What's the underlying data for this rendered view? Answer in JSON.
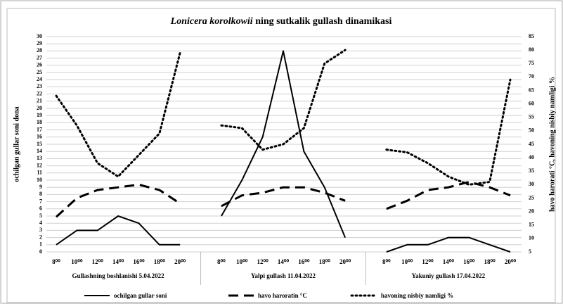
{
  "chart_data": {
    "type": "line",
    "title": [
      "Lonicera korolkowii",
      " ning sutkalik gullash dinamikasi"
    ],
    "ylabel": "ochilgan gullar soni dona",
    "y2label": "havo harorati °C, havoning nisbiy namligi %",
    "categories": [
      "8⁰⁰",
      "10⁰⁰",
      "12⁰⁰",
      "14⁰⁰",
      "16⁰⁰",
      "18⁰⁰",
      "20⁰⁰",
      null,
      "8⁰⁰",
      "10⁰⁰",
      "12⁰⁰",
      "14⁰⁰",
      "16⁰⁰",
      "18⁰⁰",
      "20⁰⁰",
      null,
      "8⁰⁰",
      "10⁰⁰",
      "12⁰⁰",
      "14⁰⁰",
      "16⁰⁰",
      "18⁰⁰",
      "20⁰⁰"
    ],
    "group_labels": [
      "Gullashning boshlanishi  5.04.2022",
      "Yalpi gullash 11.04.2022",
      "Yakuniy gullash 17.04.2022"
    ],
    "ylim": [
      0,
      30
    ],
    "yticks": [
      0,
      1,
      2,
      3,
      4,
      5,
      6,
      7,
      8,
      9,
      10,
      11,
      12,
      13,
      14,
      15,
      16,
      17,
      18,
      19,
      20,
      21,
      22,
      23,
      24,
      25,
      26,
      27,
      28,
      29,
      30
    ],
    "y2lim": [
      5,
      85
    ],
    "y2ticks": [
      5,
      10,
      15,
      20,
      25,
      30,
      35,
      40,
      45,
      50,
      55,
      60,
      65,
      70,
      75,
      80,
      85
    ],
    "grid": true,
    "legend": "bottom",
    "series": [
      {
        "name": "ochilgan gullar soni",
        "color": "#000000",
        "style": "solid",
        "values": [
          1,
          3,
          3,
          5,
          4,
          1,
          1,
          null,
          5,
          10,
          16,
          28,
          14,
          9,
          2,
          null,
          0,
          1,
          1,
          2,
          2,
          1,
          0
        ]
      },
      {
        "name": "havo haroratin °C",
        "color": "#000000",
        "style": "dashed",
        "axis": "y2",
        "values": [
          18,
          25,
          28,
          29,
          30,
          28,
          23,
          null,
          22,
          26,
          27,
          29,
          29,
          27,
          24,
          null,
          21,
          24,
          28,
          29,
          31,
          29,
          26
        ]
      },
      {
        "name": "havoning nisbiy namligi %",
        "color": "#000000",
        "style": "dotted",
        "axis": "y2",
        "values": [
          63,
          52,
          38,
          33,
          41,
          49,
          79,
          null,
          52,
          51,
          43,
          45,
          51,
          75,
          80,
          null,
          43,
          42,
          38,
          33,
          30,
          31,
          69
        ]
      }
    ]
  }
}
